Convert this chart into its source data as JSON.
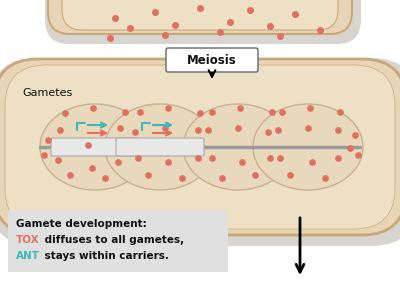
{
  "bg_color": "#ffffff",
  "cell_fill": "#e8d5b5",
  "cell_edge": "#c8a87a",
  "cell_inner_fill": "#ede0c4",
  "cell_shadow": "#d8d4d0",
  "gamete_fill": "#e8d9bc",
  "gamete_edge": "#c8b090",
  "dot_color": "#e07060",
  "chrom_color": "#9a9a9a",
  "chrom_active_fill": "#e8e8e8",
  "chrom_active_edge": "#aaaaaa",
  "arrow_tox": "#e07060",
  "arrow_ant": "#40b8b8",
  "meiosis_label": "Meiosis",
  "gametes_label": "Gametes",
  "box_bg": "#e0e0e0",
  "text_color": "#111111",
  "tox_color": "#e07060",
  "ant_color": "#40b8b8",
  "text_line1": "Gamete development:",
  "text_line2_pre": "TOX",
  "text_line2_suf": " diffuses to all gametes,",
  "text_line3_pre": "ANT",
  "text_line3_suf": " stays within carriers."
}
